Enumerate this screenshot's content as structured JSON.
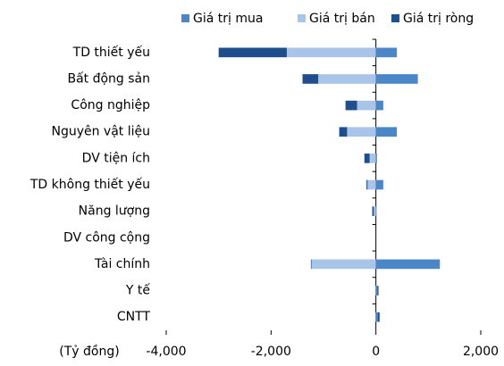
{
  "chart_data": {
    "type": "stacked-barh",
    "categories": [
      "TD thiết yếu",
      "Bất động sản",
      "Công nghiệp",
      "Nguyên vật liệu",
      "DV tiện ích",
      "TD không thiết yếu",
      "Năng lượng",
      "DV công cộng",
      "Tài chính",
      "Y tế",
      "CNTT"
    ],
    "series": [
      {
        "name": "Giá trị mua",
        "color": "#4a86c8",
        "values": [
          400,
          800,
          140,
          400,
          20,
          140,
          10,
          0,
          1220,
          30,
          40
        ]
      },
      {
        "name": "Giá trị bán",
        "color": "#a8c4e8",
        "values": [
          -1700,
          -1100,
          -360,
          -550,
          -120,
          -160,
          -40,
          0,
          -1230,
          -10,
          -10
        ]
      },
      {
        "name": "Giá trị ròng",
        "color": "#1f4e8c",
        "values": [
          -1300,
          -300,
          -220,
          -150,
          -100,
          -20,
          -30,
          0,
          -10,
          20,
          30
        ]
      }
    ],
    "x_label": "(Tỷ đồng)",
    "xlim": [
      -4000,
      2000
    ],
    "xticks": [
      {
        "value": -4000,
        "label": "-4,000"
      },
      {
        "value": -2000,
        "label": "-2,000"
      },
      0,
      {
        "value": 2000,
        "label": "2,000"
      }
    ],
    "legend": "top"
  }
}
